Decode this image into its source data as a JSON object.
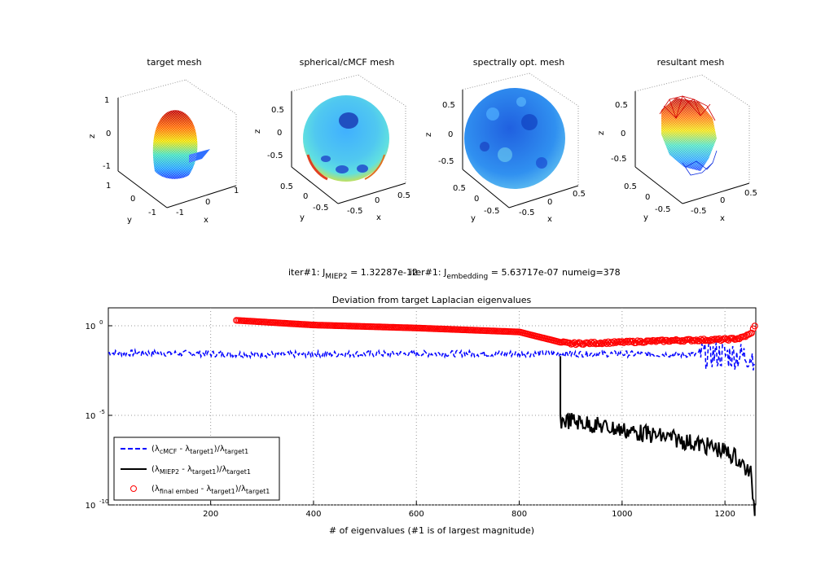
{
  "subplots": [
    {
      "title": "target mesh",
      "xlabel": "x",
      "ylabel": "y",
      "zlabel": "z",
      "z_ticks": [
        "1",
        "0",
        "-1"
      ],
      "x_ticks": [
        "-1",
        "0",
        "1"
      ],
      "y_ticks": [
        "1",
        "0",
        "-1"
      ]
    },
    {
      "title": "spherical/cMCF mesh",
      "xlabel": "x",
      "ylabel": "y",
      "zlabel": "z",
      "z_ticks": [
        "0.5",
        "0",
        "-0.5"
      ],
      "x_ticks": [
        "-0.5",
        "0",
        "0.5"
      ],
      "y_ticks": [
        "0.5",
        "0",
        "-0.5"
      ]
    },
    {
      "title": "spectrally opt. mesh",
      "xlabel": "x",
      "ylabel": "y",
      "zlabel": "z",
      "z_ticks": [
        "0.5",
        "0",
        "-0.5"
      ],
      "x_ticks": [
        "-0.5",
        "0",
        "0.5"
      ],
      "y_ticks": [
        "0.5",
        "0",
        "-0.5"
      ]
    },
    {
      "title": "resultant mesh",
      "xlabel": "x",
      "ylabel": "y",
      "zlabel": "z",
      "z_ticks": [
        "0.5",
        "0",
        "-0.5"
      ],
      "x_ticks": [
        "-0.5",
        "0",
        "0.5"
      ],
      "y_ticks": [
        "0.5",
        "0",
        "-0.5"
      ]
    }
  ],
  "info": {
    "part1_pre": "iter#1: J",
    "part1_sub": "MIEP2",
    "part1_post": " = 1.32287e-12",
    "part2_pre": "iter#1: J",
    "part2_sub": "embedding",
    "part2_post": " = 5.63717e-07",
    "part3": "numeig=378"
  },
  "chart_data": {
    "type": "line",
    "title": "Deviation from target Laplacian eigenvalues",
    "xlabel": "# of eigenvalues (#1 is of largest magnitude)",
    "ylabel": "",
    "xlim": [
      1,
      1260
    ],
    "ylim": [
      1e-10,
      10
    ],
    "y_scale": "log",
    "x_ticks": [
      200,
      400,
      600,
      800,
      1000,
      1200
    ],
    "y_ticks": [
      {
        "value": 1,
        "label": "10",
        "exp": "0"
      },
      {
        "value": 1e-05,
        "label": "10",
        "exp": "-5"
      },
      {
        "value": 1e-10,
        "label": "10",
        "exp": "-10"
      }
    ],
    "grid": true,
    "legend_position": "bottom-left",
    "series": [
      {
        "name": "(λcMCF - λtarget1)/λtarget1",
        "color": "#0000ff",
        "style": "dashed",
        "description_points": {
          "x": [
            1,
            100,
            300,
            500,
            700,
            900,
            1000,
            1100,
            1180,
            1260
          ],
          "y": [
            0.03,
            0.03,
            0.025,
            0.027,
            0.028,
            0.027,
            0.027,
            0.025,
            0.025,
            0.02
          ]
        }
      },
      {
        "name": "(λMIEP2 - λtarget1)/λtarget1",
        "color": "#000000",
        "style": "solid",
        "description_points": {
          "x": [
            880,
            900,
            1000,
            1100,
            1180,
            1220,
            1250,
            1258
          ],
          "y": [
            1e-05,
            1e-05,
            3e-06,
            1e-06,
            3e-07,
            1e-07,
            1e-08,
            1e-10
          ]
        }
      },
      {
        "name": "(λfinal embed - λtarget1)/λtarget1",
        "color": "#ff0000",
        "style": "markers",
        "description_points": {
          "x": [
            250,
            400,
            600,
            800,
            880,
            900,
            1000,
            1100,
            1200,
            1230,
            1250,
            1258
          ],
          "y": [
            2,
            1.1,
            0.75,
            0.45,
            0.12,
            0.1,
            0.12,
            0.15,
            0.17,
            0.2,
            0.35,
            0.9
          ]
        }
      }
    ]
  }
}
